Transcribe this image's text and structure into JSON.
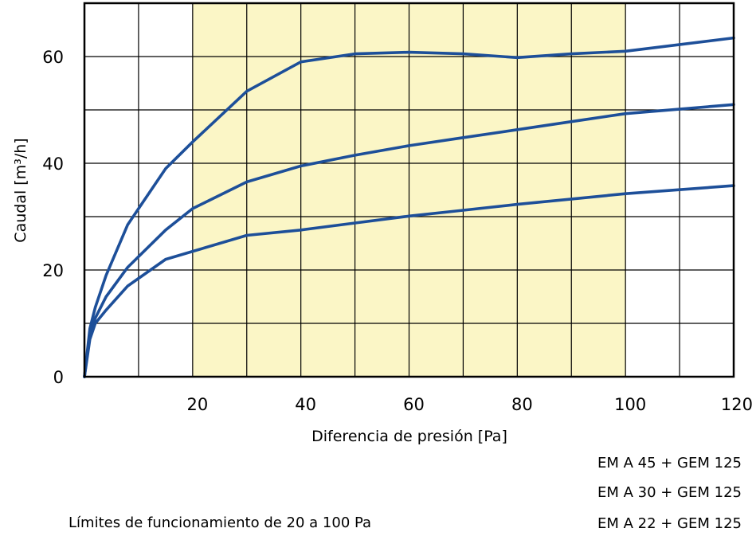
{
  "chart_data": {
    "type": "line",
    "xlabel": "Diferencia de presión [Pa]",
    "ylabel": "Caudal [m³/h]",
    "xlim": [
      0,
      120
    ],
    "ylim": [
      0,
      70
    ],
    "xticks": [
      20,
      40,
      60,
      80,
      100,
      120
    ],
    "yticks": [
      0,
      20,
      40,
      60
    ],
    "grid": true,
    "highlight_band": {
      "x": [
        20,
        100
      ],
      "color": "#fbf6c6"
    },
    "line_color": "#1d4f99",
    "series": [
      {
        "x": [
          0,
          1,
          2,
          4,
          8,
          15,
          20,
          30,
          40,
          50,
          60,
          70,
          80,
          90,
          100,
          120
        ],
        "y": [
          0,
          9,
          13,
          19,
          28.5,
          39,
          44,
          53.5,
          59,
          60.5,
          60.8,
          60.5,
          59.8,
          60.5,
          61,
          63.5
        ]
      },
      {
        "x": [
          0,
          1,
          2,
          4,
          8,
          15,
          20,
          30,
          40,
          50,
          60,
          70,
          80,
          90,
          100,
          120
        ],
        "y": [
          0,
          8,
          11,
          15,
          20.5,
          27.5,
          31.5,
          36.5,
          39.5,
          41.5,
          43.3,
          44.8,
          46.3,
          47.8,
          49.3,
          51
        ]
      },
      {
        "x": [
          0,
          1,
          2,
          4,
          8,
          15,
          20,
          30,
          40,
          50,
          60,
          70,
          80,
          90,
          100,
          120
        ],
        "y": [
          0,
          7,
          10,
          12.5,
          17,
          22,
          23.5,
          26.5,
          27.5,
          28.8,
          30.1,
          31.2,
          32.3,
          33.3,
          34.3,
          35.8
        ]
      }
    ]
  },
  "legend": [
    "EM A 45 + GEM 125",
    "EM A 30 + GEM 125",
    "EM A 22 + GEM 125"
  ],
  "note": "Límites de funcionamiento de 20 a 100 Pa"
}
